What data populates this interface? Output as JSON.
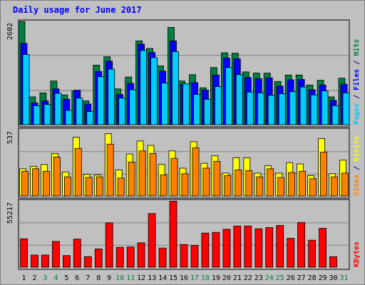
{
  "chart_data": {
    "title": "Daily usage for June 2017",
    "type": "bar",
    "days": [
      "1",
      "2",
      "3",
      "4",
      "5",
      "6",
      "7",
      "8",
      "9",
      "10",
      "11",
      "12",
      "13",
      "14",
      "15",
      "16",
      "17",
      "18",
      "19",
      "20",
      "21",
      "22",
      "23",
      "24",
      "25",
      "26",
      "27",
      "28",
      "29",
      "30",
      "31"
    ],
    "weekend_days": [
      "3",
      "4",
      "10",
      "11",
      "17",
      "18",
      "24",
      "25",
      "31"
    ],
    "panels": [
      {
        "id": "hits-files-pages",
        "ymax_label": "2602",
        "ymax": 2602,
        "gridlines": [
          0.33,
          0.67
        ],
        "side_label": [
          {
            "text": "Pages",
            "color": "#00ccff"
          },
          {
            "text": " / ",
            "color": "#000080"
          },
          {
            "text": "Files",
            "color": "#0000ff"
          },
          {
            "text": " / ",
            "color": "#000080"
          },
          {
            "text": "Hits",
            "color": "#008040"
          }
        ],
        "series": [
          {
            "name": "Hits",
            "color": "#008040",
            "values": [
              2600,
              700,
              800,
              1100,
              750,
              850,
              600,
              1500,
              1710,
              900,
              1200,
              2110,
              1920,
              1480,
              2450,
              1100,
              1260,
              930,
              1440,
              1810,
              1800,
              1330,
              1300,
              1300,
              1090,
              1250,
              1250,
              1000,
              1120,
              700,
              1170
            ]
          },
          {
            "name": "Files",
            "color": "#0000ff",
            "values": [
              2050,
              550,
              600,
              900,
              640,
              870,
              520,
              1340,
              1600,
              760,
              1040,
              2030,
              1820,
              1350,
              2110,
              1020,
              1060,
              870,
              1250,
              1680,
              1660,
              1190,
              1160,
              1180,
              970,
              1130,
              1140,
              880,
              1000,
              610,
              1020
            ]
          },
          {
            "name": "Pages",
            "color": "#00ccff",
            "values": [
              1770,
              480,
              510,
              790,
              360,
              670,
              330,
              1210,
              1400,
              670,
              880,
              1870,
              1690,
              1050,
              1840,
              1030,
              760,
              640,
              960,
              1440,
              1260,
              820,
              800,
              740,
              780,
              830,
              950,
              750,
              850,
              480,
              800
            ]
          }
        ]
      },
      {
        "id": "visits-sites",
        "ymax_label": "537",
        "ymax": 537,
        "gridlines": [
          0.33,
          0.67
        ],
        "side_label": [
          {
            "text": "Sites",
            "color": "#ff8000"
          },
          {
            "text": " / ",
            "color": "#000080"
          },
          {
            "text": "Visits",
            "color": "#ffff00"
          }
        ],
        "series": [
          {
            "name": "Visits",
            "color": "#ffff00",
            "values": [
              220,
              240,
              255,
              345,
              195,
              475,
              175,
              170,
              505,
              210,
              340,
              445,
              410,
              255,
              365,
              225,
              440,
              265,
              325,
              185,
              310,
              310,
              185,
              245,
              185,
              270,
              260,
              165,
              465,
              180,
              290
            ]
          },
          {
            "name": "Sites",
            "color": "#ff8000",
            "values": [
              200,
              220,
              200,
              315,
              155,
              385,
              150,
              155,
              420,
              145,
              275,
              365,
              345,
              170,
              305,
              180,
              390,
              225,
              280,
              165,
              210,
              205,
              155,
              220,
              150,
              190,
              200,
              140,
              355,
              155,
              185
            ]
          }
        ]
      },
      {
        "id": "kbytes",
        "ymax_label": "55217",
        "ymax": 55217,
        "gridlines": [
          0.33,
          0.67
        ],
        "side_label": [
          {
            "text": "KBytes",
            "color": "#ff0000"
          }
        ],
        "series": [
          {
            "name": "KBytes",
            "color": "#ff0000",
            "values": [
              23700,
              10100,
              10100,
              21500,
              9700,
              23400,
              8800,
              15200,
              37000,
              16500,
              16800,
              20300,
              44700,
              16000,
              55000,
              18900,
              18200,
              28400,
              29000,
              31600,
              34300,
              34300,
              32000,
              33000,
              34800,
              24100,
              37300,
              22500,
              32400,
              8700,
              0
            ]
          }
        ]
      }
    ]
  }
}
